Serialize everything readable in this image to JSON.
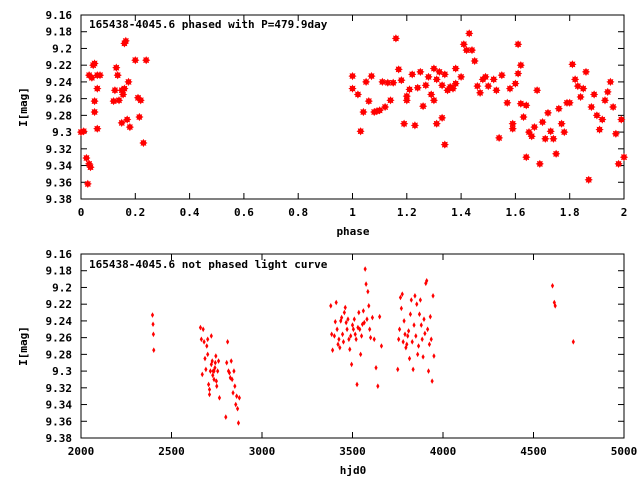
{
  "charts": [
    {
      "type": "scatter",
      "title": "165438-4045.6 phased with P=479.9day",
      "xlabel": "phase",
      "ylabel": "I[mag]",
      "xlim": [
        0,
        2
      ],
      "ylim": [
        9.16,
        9.38
      ],
      "y_inverted": true,
      "xticks": [
        0,
        0.2,
        0.4,
        0.6,
        0.8,
        1,
        1.2,
        1.4,
        1.6,
        1.8,
        2
      ],
      "xtick_labels": [
        "0",
        "0.2",
        "0.4",
        "0.6",
        "0.8",
        "1",
        "1.2",
        "1.4",
        "1.6",
        "1.8",
        "2"
      ],
      "yticks": [
        9.16,
        9.18,
        9.2,
        9.22,
        9.24,
        9.26,
        9.28,
        9.3,
        9.32,
        9.34,
        9.36,
        9.38
      ],
      "ytick_labels": [
        "9.16",
        "9.18",
        "9.2",
        "9.22",
        "9.24",
        "9.26",
        "9.28",
        "9.3",
        "9.32",
        "9.34",
        "9.36",
        "9.38"
      ],
      "marker": "star",
      "color": "#ff0000",
      "points": [
        [
          0.0,
          9.3
        ],
        [
          0.01,
          9.299
        ],
        [
          0.02,
          9.331
        ],
        [
          0.025,
          9.362
        ],
        [
          0.03,
          9.338
        ],
        [
          0.035,
          9.342
        ],
        [
          0.03,
          9.232
        ],
        [
          0.04,
          9.235
        ],
        [
          0.045,
          9.22
        ],
        [
          0.05,
          9.218
        ],
        [
          0.06,
          9.248
        ],
        [
          0.05,
          9.263
        ],
        [
          0.05,
          9.276
        ],
        [
          0.06,
          9.296
        ],
        [
          0.07,
          9.232
        ],
        [
          0.06,
          9.232
        ],
        [
          0.12,
          9.263
        ],
        [
          0.125,
          9.25
        ],
        [
          0.13,
          9.223
        ],
        [
          0.135,
          9.232
        ],
        [
          0.14,
          9.262
        ],
        [
          0.15,
          9.25
        ],
        [
          0.155,
          9.255
        ],
        [
          0.16,
          9.248
        ],
        [
          0.15,
          9.289
        ],
        [
          0.17,
          9.285
        ],
        [
          0.16,
          9.194
        ],
        [
          0.165,
          9.191
        ],
        [
          0.175,
          9.24
        ],
        [
          0.18,
          9.294
        ],
        [
          0.2,
          9.214
        ],
        [
          0.21,
          9.259
        ],
        [
          0.22,
          9.262
        ],
        [
          0.215,
          9.282
        ],
        [
          0.23,
          9.313
        ],
        [
          0.24,
          9.214
        ],
        [
          1.0,
          9.233
        ],
        [
          1.0,
          9.248
        ],
        [
          1.02,
          9.255
        ],
        [
          1.03,
          9.299
        ],
        [
          1.04,
          9.276
        ],
        [
          1.05,
          9.24
        ],
        [
          1.06,
          9.263
        ],
        [
          1.07,
          9.233
        ],
        [
          1.08,
          9.276
        ],
        [
          1.09,
          9.275
        ],
        [
          1.1,
          9.274
        ],
        [
          1.11,
          9.24
        ],
        [
          1.12,
          9.27
        ],
        [
          1.13,
          9.241
        ],
        [
          1.14,
          9.262
        ],
        [
          1.15,
          9.241
        ],
        [
          1.16,
          9.188
        ],
        [
          1.17,
          9.225
        ],
        [
          1.18,
          9.238
        ],
        [
          1.19,
          9.29
        ],
        [
          1.2,
          9.262
        ],
        [
          1.2,
          9.257
        ],
        [
          1.21,
          9.249
        ],
        [
          1.22,
          9.231
        ],
        [
          1.23,
          9.292
        ],
        [
          1.24,
          9.247
        ],
        [
          1.25,
          9.228
        ],
        [
          1.26,
          9.269
        ],
        [
          1.27,
          9.244
        ],
        [
          1.28,
          9.234
        ],
        [
          1.29,
          9.255
        ],
        [
          1.3,
          9.262
        ],
        [
          1.3,
          9.224
        ],
        [
          1.31,
          9.237
        ],
        [
          1.32,
          9.228
        ],
        [
          1.33,
          9.283
        ],
        [
          1.34,
          9.231
        ],
        [
          1.35,
          9.25
        ],
        [
          1.36,
          9.246
        ],
        [
          1.37,
          9.248
        ],
        [
          1.38,
          9.224
        ],
        [
          1.38,
          9.242
        ],
        [
          1.33,
          9.244
        ],
        [
          1.31,
          9.29
        ],
        [
          1.34,
          9.315
        ],
        [
          1.4,
          9.234
        ],
        [
          1.41,
          9.195
        ],
        [
          1.42,
          9.202
        ],
        [
          1.43,
          9.182
        ],
        [
          1.44,
          9.202
        ],
        [
          1.45,
          9.215
        ],
        [
          1.46,
          9.245
        ],
        [
          1.47,
          9.253
        ],
        [
          1.48,
          9.237
        ],
        [
          1.49,
          9.234
        ],
        [
          1.5,
          9.245
        ],
        [
          1.52,
          9.237
        ],
        [
          1.53,
          9.25
        ],
        [
          1.54,
          9.307
        ],
        [
          1.55,
          9.232
        ],
        [
          1.57,
          9.265
        ],
        [
          1.58,
          9.248
        ],
        [
          1.59,
          9.29
        ],
        [
          1.59,
          9.296
        ],
        [
          1.6,
          9.242
        ],
        [
          1.61,
          9.195
        ],
        [
          1.61,
          9.23
        ],
        [
          1.62,
          9.266
        ],
        [
          1.62,
          9.22
        ],
        [
          1.63,
          9.282
        ],
        [
          1.64,
          9.268
        ],
        [
          1.64,
          9.33
        ],
        [
          1.65,
          9.3
        ],
        [
          1.66,
          9.305
        ],
        [
          1.67,
          9.294
        ],
        [
          1.68,
          9.25
        ],
        [
          1.69,
          9.338
        ],
        [
          1.7,
          9.288
        ],
        [
          1.71,
          9.308
        ],
        [
          1.72,
          9.277
        ],
        [
          1.73,
          9.299
        ],
        [
          1.74,
          9.308
        ],
        [
          1.75,
          9.326
        ],
        [
          1.76,
          9.272
        ],
        [
          1.77,
          9.29
        ],
        [
          1.78,
          9.3
        ],
        [
          1.79,
          9.265
        ],
        [
          1.8,
          9.265
        ],
        [
          1.81,
          9.219
        ],
        [
          1.82,
          9.237
        ],
        [
          1.83,
          9.245
        ],
        [
          1.84,
          9.258
        ],
        [
          1.85,
          9.248
        ],
        [
          1.86,
          9.228
        ],
        [
          1.87,
          9.357
        ],
        [
          1.88,
          9.27
        ],
        [
          1.89,
          9.255
        ],
        [
          1.9,
          9.28
        ],
        [
          1.91,
          9.297
        ],
        [
          1.92,
          9.285
        ],
        [
          1.93,
          9.262
        ],
        [
          1.94,
          9.252
        ],
        [
          1.95,
          9.24
        ],
        [
          1.96,
          9.27
        ],
        [
          1.97,
          9.302
        ],
        [
          1.98,
          9.338
        ],
        [
          1.99,
          9.285
        ],
        [
          2.0,
          9.33
        ]
      ]
    },
    {
      "type": "scatter",
      "title": "165438-4045.6 not phased light curve",
      "xlabel": "hjd0",
      "ylabel": "I[mag]",
      "xlim": [
        2000,
        5000
      ],
      "ylim": [
        9.16,
        9.38
      ],
      "y_inverted": true,
      "xticks": [
        2000,
        2500,
        3000,
        3500,
        4000,
        4500,
        5000
      ],
      "xtick_labels": [
        "2000",
        "2500",
        "3000",
        "3500",
        "4000",
        "4500",
        "5000"
      ],
      "yticks": [
        9.16,
        9.18,
        9.2,
        9.22,
        9.24,
        9.26,
        9.28,
        9.3,
        9.32,
        9.34,
        9.36,
        9.38
      ],
      "ytick_labels": [
        "9.16",
        "9.18",
        "9.2",
        "9.22",
        "9.24",
        "9.26",
        "9.28",
        "9.3",
        "9.32",
        "9.34",
        "9.36",
        "9.38"
      ],
      "marker": "diamond",
      "color": "#ff0000",
      "points": [
        [
          2395,
          9.233
        ],
        [
          2398,
          9.244
        ],
        [
          2400,
          9.256
        ],
        [
          2402,
          9.275
        ],
        [
          2660,
          9.248
        ],
        [
          2665,
          9.262
        ],
        [
          2670,
          9.304
        ],
        [
          2675,
          9.25
        ],
        [
          2680,
          9.265
        ],
        [
          2685,
          9.285
        ],
        [
          2690,
          9.298
        ],
        [
          2695,
          9.27
        ],
        [
          2700,
          9.262
        ],
        [
          2705,
          9.316
        ],
        [
          2710,
          9.328
        ],
        [
          2715,
          9.3
        ],
        [
          2720,
          9.292
        ],
        [
          2725,
          9.288
        ],
        [
          2730,
          9.3
        ],
        [
          2735,
          9.31
        ],
        [
          2740,
          9.296
        ],
        [
          2745,
          9.282
        ],
        [
          2750,
          9.318
        ],
        [
          2755,
          9.3
        ],
        [
          2760,
          9.288
        ],
        [
          2765,
          9.332
        ],
        [
          2700,
          9.28
        ],
        [
          2710,
          9.322
        ],
        [
          2720,
          9.258
        ],
        [
          2728,
          9.305
        ],
        [
          2735,
          9.3
        ],
        [
          2742,
          9.29
        ],
        [
          2748,
          9.312
        ],
        [
          2800,
          9.355
        ],
        [
          2805,
          9.29
        ],
        [
          2810,
          9.265
        ],
        [
          2815,
          9.3
        ],
        [
          2820,
          9.302
        ],
        [
          2825,
          9.308
        ],
        [
          2830,
          9.288
        ],
        [
          2835,
          9.31
        ],
        [
          2840,
          9.326
        ],
        [
          2845,
          9.3
        ],
        [
          2850,
          9.318
        ],
        [
          2855,
          9.34
        ],
        [
          2860,
          9.33
        ],
        [
          2865,
          9.345
        ],
        [
          2870,
          9.362
        ],
        [
          2875,
          9.332
        ],
        [
          3380,
          9.222
        ],
        [
          3385,
          9.256
        ],
        [
          3390,
          9.275
        ],
        [
          3400,
          9.258
        ],
        [
          3405,
          9.241
        ],
        [
          3410,
          9.218
        ],
        [
          3415,
          9.25
        ],
        [
          3420,
          9.268
        ],
        [
          3425,
          9.262
        ],
        [
          3430,
          9.272
        ],
        [
          3435,
          9.24
        ],
        [
          3440,
          9.236
        ],
        [
          3445,
          9.256
        ],
        [
          3450,
          9.265
        ],
        [
          3455,
          9.23
        ],
        [
          3460,
          9.224
        ],
        [
          3465,
          9.242
        ],
        [
          3470,
          9.25
        ],
        [
          3475,
          9.238
        ],
        [
          3480,
          9.262
        ],
        [
          3485,
          9.274
        ],
        [
          3490,
          9.258
        ],
        [
          3495,
          9.292
        ],
        [
          3500,
          9.245
        ],
        [
          3505,
          9.25
        ],
        [
          3510,
          9.238
        ],
        [
          3515,
          9.256
        ],
        [
          3520,
          9.262
        ],
        [
          3525,
          9.316
        ],
        [
          3530,
          9.248
        ],
        [
          3535,
          9.23
        ],
        [
          3540,
          9.25
        ],
        [
          3545,
          9.28
        ],
        [
          3550,
          9.258
        ],
        [
          3555,
          9.244
        ],
        [
          3560,
          9.228
        ],
        [
          3565,
          9.242
        ],
        [
          3570,
          9.178
        ],
        [
          3575,
          9.196
        ],
        [
          3580,
          9.238
        ],
        [
          3585,
          9.205
        ],
        [
          3590,
          9.222
        ],
        [
          3595,
          9.25
        ],
        [
          3600,
          9.26
        ],
        [
          3610,
          9.236
        ],
        [
          3620,
          9.262
        ],
        [
          3630,
          9.296
        ],
        [
          3640,
          9.318
        ],
        [
          3650,
          9.235
        ],
        [
          3660,
          9.27
        ],
        [
          3750,
          9.298
        ],
        [
          3755,
          9.262
        ],
        [
          3760,
          9.25
        ],
        [
          3765,
          9.212
        ],
        [
          3770,
          9.225
        ],
        [
          3775,
          9.208
        ],
        [
          3780,
          9.265
        ],
        [
          3785,
          9.24
        ],
        [
          3790,
          9.256
        ],
        [
          3795,
          9.272
        ],
        [
          3800,
          9.268
        ],
        [
          3805,
          9.258
        ],
        [
          3810,
          9.252
        ],
        [
          3815,
          9.285
        ],
        [
          3820,
          9.232
        ],
        [
          3825,
          9.215
        ],
        [
          3830,
          9.265
        ],
        [
          3835,
          9.298
        ],
        [
          3840,
          9.245
        ],
        [
          3845,
          9.21
        ],
        [
          3850,
          9.258
        ],
        [
          3855,
          9.22
        ],
        [
          3860,
          9.28
        ],
        [
          3865,
          9.27
        ],
        [
          3870,
          9.232
        ],
        [
          3875,
          9.215
        ],
        [
          3880,
          9.245
        ],
        [
          3885,
          9.262
        ],
        [
          3890,
          9.283
        ],
        [
          3895,
          9.238
        ],
        [
          3900,
          9.255
        ],
        [
          3905,
          9.195
        ],
        [
          3910,
          9.192
        ],
        [
          3915,
          9.25
        ],
        [
          3920,
          9.3
        ],
        [
          3925,
          9.268
        ],
        [
          3930,
          9.235
        ],
        [
          3935,
          9.262
        ],
        [
          3940,
          9.312
        ],
        [
          3945,
          9.21
        ],
        [
          3950,
          9.282
        ],
        [
          4605,
          9.198
        ],
        [
          4615,
          9.218
        ],
        [
          4620,
          9.222
        ],
        [
          4720,
          9.265
        ]
      ]
    }
  ]
}
